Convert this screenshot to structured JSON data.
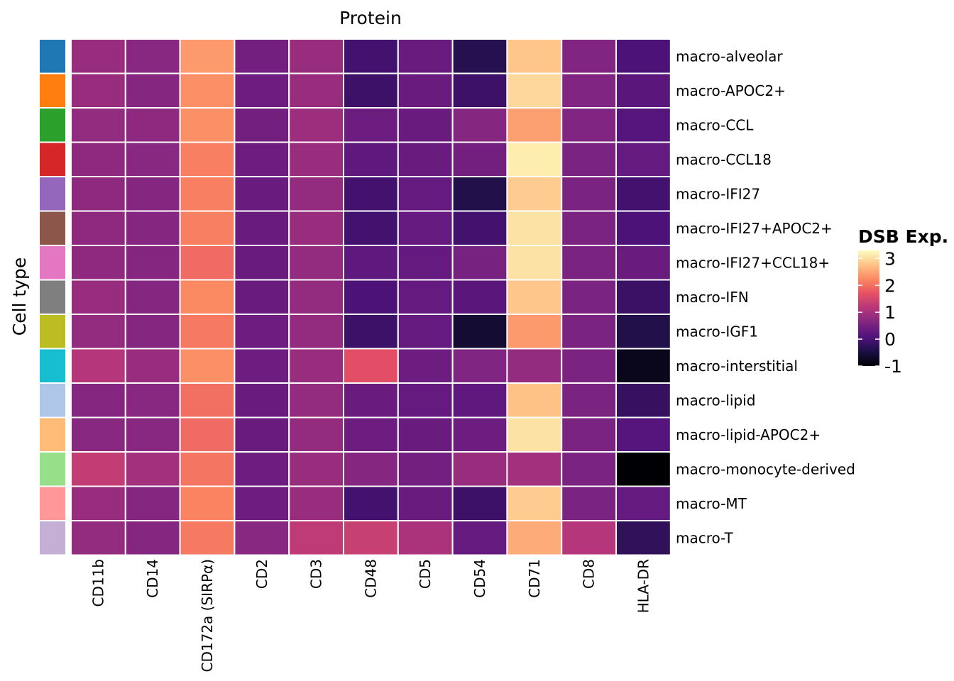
{
  "chart_data": {
    "type": "heatmap",
    "title": "Protein",
    "xlabel": "Protein",
    "ylabel": "Cell type",
    "columns": [
      "CD11b",
      "CD14",
      "CD172a (SIRPα)",
      "CD2",
      "CD3",
      "CD48",
      "CD5",
      "CD54",
      "CD71",
      "CD8",
      "HLA-DR"
    ],
    "rows": [
      "macro-alveolar",
      "macro-APOC2+",
      "macro-CCL",
      "macro-CCL18",
      "macro-IFI27",
      "macro-IFI27+APOC2+",
      "macro-IFI27+CCL18+",
      "macro-IFN",
      "macro-IGF1",
      "macro-interstitial",
      "macro-lipid",
      "macro-lipid-APOC2+",
      "macro-monocyte-derived",
      "macro-MT",
      "macro-T"
    ],
    "row_colors": [
      "#1f77b4",
      "#ff7f0e",
      "#2ca02c",
      "#d62728",
      "#9467bd",
      "#8c564b",
      "#e377c2",
      "#7f7f7f",
      "#bcbd22",
      "#17becf",
      "#aec7e8",
      "#ffbb78",
      "#98df8a",
      "#ff9896",
      "#c5b0d5"
    ],
    "values": [
      [
        0.85,
        0.7,
        2.4,
        0.45,
        0.85,
        -0.05,
        0.35,
        -0.35,
        2.8,
        0.6,
        0.05
      ],
      [
        0.85,
        0.65,
        2.3,
        0.4,
        0.85,
        -0.1,
        0.35,
        -0.1,
        2.95,
        0.6,
        0.2
      ],
      [
        0.8,
        0.75,
        2.3,
        0.45,
        0.9,
        0.4,
        0.35,
        0.65,
        2.45,
        0.6,
        0.15
      ],
      [
        0.75,
        0.7,
        2.15,
        0.4,
        0.85,
        0.25,
        0.35,
        0.45,
        3.15,
        0.55,
        0.3
      ],
      [
        0.75,
        0.65,
        2.15,
        0.35,
        0.8,
        -0.05,
        0.3,
        -0.4,
        2.85,
        0.55,
        -0.05
      ],
      [
        0.75,
        0.65,
        2.15,
        0.35,
        0.85,
        -0.05,
        0.3,
        -0.05,
        3.05,
        0.55,
        0.05
      ],
      [
        0.75,
        0.65,
        1.95,
        0.35,
        0.8,
        0.25,
        0.3,
        0.5,
        3.05,
        0.55,
        0.35
      ],
      [
        0.85,
        0.65,
        2.25,
        0.35,
        0.8,
        0.05,
        0.3,
        0.2,
        2.8,
        0.55,
        -0.15
      ],
      [
        0.8,
        0.65,
        2.1,
        0.4,
        0.8,
        -0.1,
        0.3,
        -0.6,
        2.4,
        0.55,
        -0.4
      ],
      [
        1.15,
        0.85,
        2.3,
        0.4,
        0.85,
        1.65,
        0.4,
        0.6,
        0.8,
        0.55,
        -0.8
      ],
      [
        0.65,
        0.7,
        2.0,
        0.35,
        0.8,
        0.35,
        0.3,
        0.25,
        2.75,
        0.55,
        -0.2
      ],
      [
        0.7,
        0.7,
        1.95,
        0.35,
        0.8,
        0.4,
        0.35,
        0.4,
        3.05,
        0.55,
        0.15
      ],
      [
        1.3,
        0.95,
        2.05,
        0.4,
        0.85,
        0.65,
        0.45,
        0.85,
        0.95,
        0.55,
        -1.0
      ],
      [
        0.85,
        0.65,
        2.2,
        0.4,
        0.85,
        -0.05,
        0.35,
        -0.1,
        2.85,
        0.55,
        0.3
      ],
      [
        0.8,
        0.65,
        2.1,
        0.7,
        1.25,
        1.35,
        1.05,
        0.3,
        2.55,
        1.15,
        -0.25
      ]
    ],
    "color_scale": {
      "name": "magma",
      "vmin": -1,
      "vmax": 3.3,
      "stops": [
        "#000004",
        "#1c1044",
        "#4f127b",
        "#812581",
        "#b5367a",
        "#e55064",
        "#fb8761",
        "#fec287",
        "#fcfdbf"
      ]
    },
    "legend": {
      "title": "DSB Exp.",
      "ticks": [
        -1,
        0,
        1,
        2,
        3
      ],
      "tick_labels": [
        "-1",
        "0",
        "1",
        "2",
        "3"
      ],
      "placement": "right"
    },
    "cell_border_color": "#ffffff"
  }
}
